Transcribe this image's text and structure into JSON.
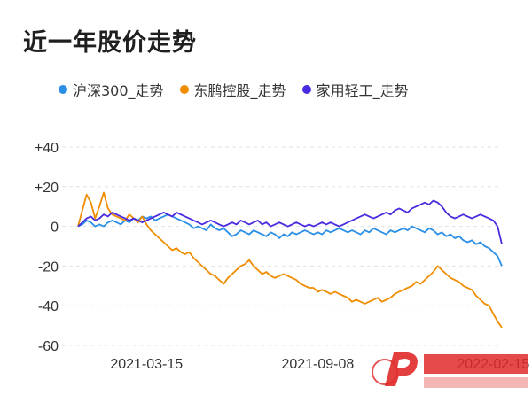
{
  "chart_data": {
    "type": "line",
    "title": "近一年股价走势",
    "xlabel": "",
    "ylabel": "",
    "ylim": [
      -60,
      40
    ],
    "yticks": [
      "+40",
      "+20",
      "0",
      "-20",
      "-40",
      "-60"
    ],
    "ytick_values": [
      40,
      20,
      0,
      -20,
      -40,
      -60
    ],
    "xtick_labels": [
      "2021-03-15",
      "2021-09-08",
      "2022-02-15"
    ],
    "xtick_index": [
      16,
      56,
      97
    ],
    "grid": true,
    "legend_position": "top-left",
    "series": [
      {
        "name": "沪深300_走势",
        "color": "#2b8fe6",
        "values": [
          0,
          1,
          3,
          2,
          0,
          1,
          0,
          2,
          3,
          2,
          1,
          3,
          2,
          4,
          3,
          5,
          4,
          5,
          3,
          4,
          5,
          6,
          5,
          4,
          3,
          2,
          1,
          -1,
          0,
          -1,
          -2,
          1,
          -1,
          -2,
          -1,
          -3,
          -5,
          -4,
          -2,
          -3,
          -4,
          -2,
          -3,
          -4,
          -5,
          -3,
          -4,
          -6,
          -4,
          -5,
          -3,
          -4,
          -3,
          -2,
          -3,
          -4,
          -3,
          -4,
          -2,
          -3,
          -2,
          -1,
          -2,
          -3,
          -2,
          -3,
          -4,
          -2,
          -3,
          -1,
          -2,
          -3,
          -4,
          -2,
          -3,
          -2,
          -1,
          -2,
          0,
          -1,
          -2,
          -3,
          -1,
          -2,
          -4,
          -3,
          -5,
          -4,
          -6,
          -5,
          -7,
          -8,
          -7,
          -9,
          -8,
          -10,
          -11,
          -13,
          -15,
          -20
        ]
      },
      {
        "name": "东鹏控股_走势",
        "color": "#f08c00",
        "values": [
          0,
          8,
          16,
          12,
          4,
          10,
          17,
          9,
          6,
          5,
          4,
          3,
          6,
          4,
          2,
          5,
          1,
          -2,
          -4,
          -6,
          -8,
          -10,
          -12,
          -11,
          -13,
          -14,
          -13,
          -16,
          -18,
          -20,
          -22,
          -24,
          -25,
          -27,
          -29,
          -26,
          -24,
          -22,
          -20,
          -19,
          -17,
          -20,
          -22,
          -24,
          -23,
          -25,
          -26,
          -25,
          -24,
          -25,
          -26,
          -27,
          -29,
          -30,
          -31,
          -31,
          -33,
          -32,
          -33,
          -34,
          -33,
          -34,
          -35,
          -36,
          -38,
          -37,
          -38,
          -39,
          -38,
          -37,
          -36,
          -38,
          -37,
          -36,
          -34,
          -33,
          -32,
          -31,
          -30,
          -28,
          -29,
          -27,
          -25,
          -23,
          -20,
          -22,
          -24,
          -26,
          -27,
          -28,
          -30,
          -31,
          -32,
          -35,
          -37,
          -39,
          -40,
          -44,
          -48,
          -51
        ]
      },
      {
        "name": "家用轻工_走势",
        "color": "#4a2be0",
        "values": [
          0,
          2,
          4,
          5,
          3,
          4,
          6,
          5,
          7,
          6,
          5,
          4,
          3,
          4,
          3,
          2,
          3,
          4,
          5,
          6,
          7,
          6,
          5,
          7,
          6,
          5,
          4,
          3,
          2,
          1,
          2,
          3,
          2,
          1,
          0,
          1,
          2,
          1,
          3,
          2,
          1,
          2,
          3,
          1,
          2,
          0,
          1,
          2,
          1,
          0,
          1,
          2,
          1,
          0,
          1,
          0,
          1,
          2,
          1,
          2,
          1,
          0,
          1,
          2,
          3,
          4,
          5,
          6,
          5,
          4,
          5,
          6,
          7,
          6,
          8,
          9,
          8,
          7,
          9,
          10,
          11,
          12,
          11,
          13,
          12,
          10,
          7,
          5,
          4,
          5,
          6,
          5,
          4,
          5,
          6,
          5,
          4,
          3,
          0,
          -9
        ]
      }
    ]
  }
}
